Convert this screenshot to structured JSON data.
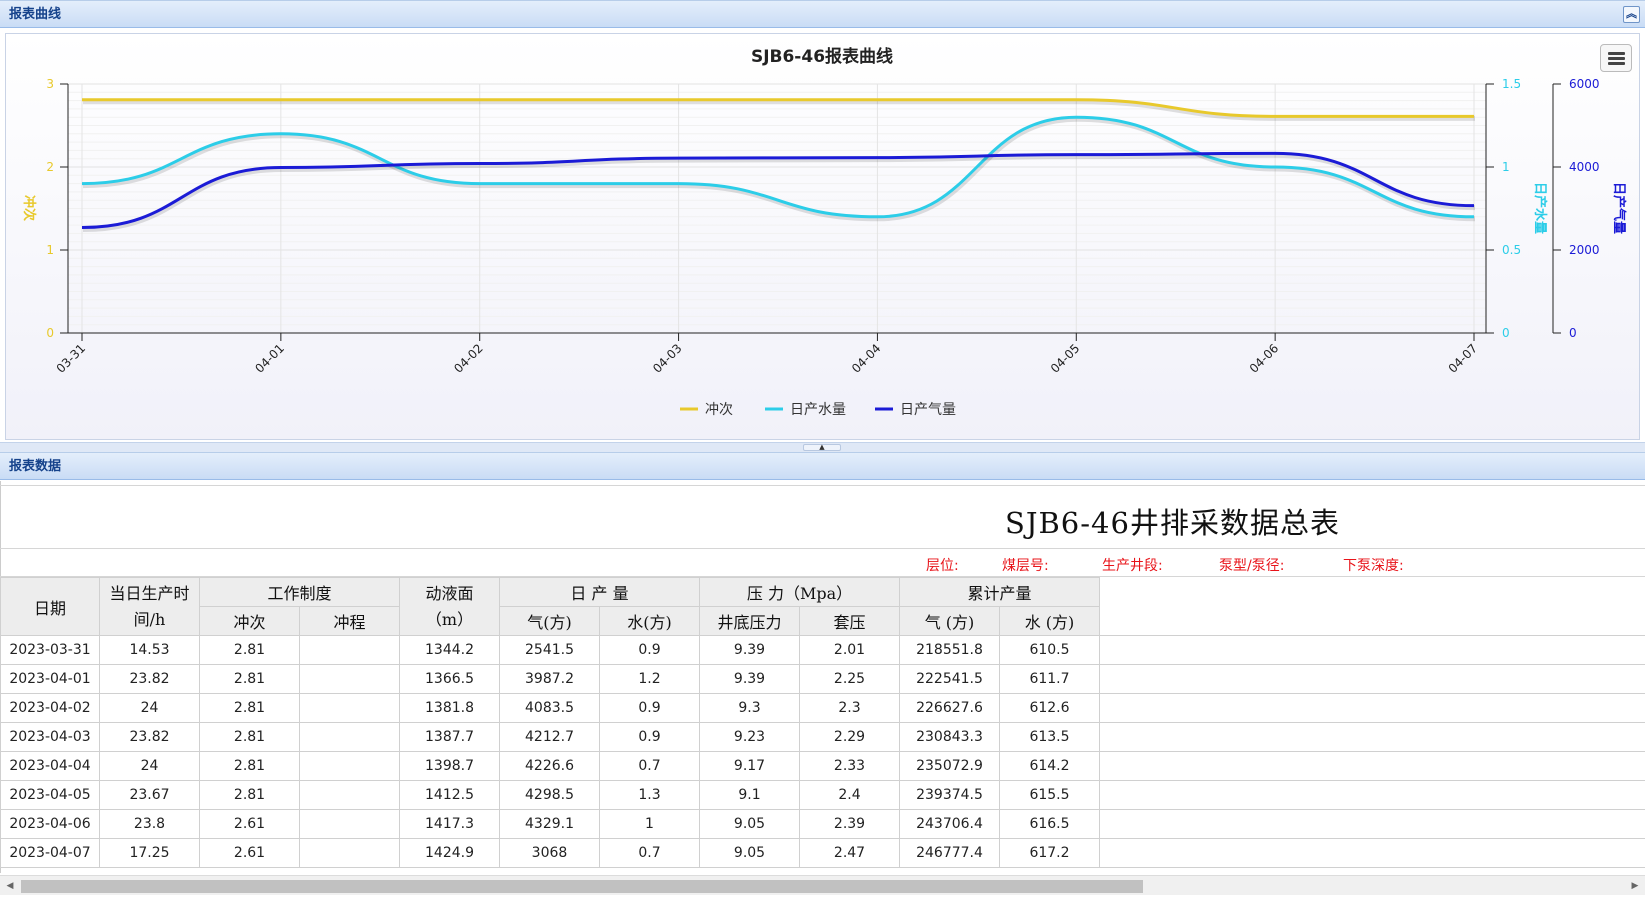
{
  "panels": {
    "chart_panel_title": "报表曲线",
    "data_panel_title": "报表数据"
  },
  "icons": {
    "collapse": "double-chevron-up-icon",
    "menu": "hamburger-menu-icon"
  },
  "colors": {
    "stroke": "#e8c92c",
    "water": "#2ccde8",
    "gas": "#1b1bd6",
    "meta_text": "#e8141a"
  },
  "chart_data": {
    "type": "line",
    "title": "SJB6-46报表曲线",
    "categories": [
      "03-31",
      "04-01",
      "04-02",
      "04-03",
      "04-04",
      "04-05",
      "04-06",
      "04-07"
    ],
    "series": [
      {
        "name": "冲次",
        "axis": "left",
        "values": [
          2.81,
          2.81,
          2.81,
          2.81,
          2.81,
          2.81,
          2.61,
          2.61
        ]
      },
      {
        "name": "日产水量",
        "axis": "right1",
        "values": [
          0.9,
          1.2,
          0.9,
          0.9,
          0.7,
          1.3,
          1.0,
          0.7
        ]
      },
      {
        "name": "日产气量",
        "axis": "right2",
        "values": [
          2541.5,
          3987.2,
          4083.5,
          4212.7,
          4226.6,
          4298.5,
          4329.1,
          3068
        ]
      }
    ],
    "axes": {
      "left": {
        "label": "冲次",
        "min": 0,
        "max": 3,
        "ticks": [
          "0",
          "1",
          "2",
          "3"
        ]
      },
      "right1": {
        "label": "日产水量",
        "min": 0,
        "max": 1.5,
        "ticks": [
          "0",
          "0.5",
          "1",
          "1.5"
        ]
      },
      "right2": {
        "label": "日产气量",
        "min": 0,
        "max": 6000,
        "ticks": [
          "0",
          "2000",
          "4000",
          "6000"
        ]
      }
    },
    "grid": true,
    "legend": "bottom-center"
  },
  "report": {
    "title": "SJB6-46井排采数据总表",
    "meta": [
      "层位:",
      "煤层号:",
      "生产井段:",
      "泵型/泵径:",
      "下泵深度:"
    ],
    "headers": {
      "date": "日期",
      "hours": "当日生产时间/h",
      "work": "工作制度",
      "stroke_count": "冲次",
      "stroke_len": "冲程",
      "fluid": "动液面（m）",
      "daily": "日 产 量",
      "gas": "气(方)",
      "water": "水(方)",
      "pressure": "压 力（Mpa）",
      "bottom": "井底压力",
      "casing": "套压",
      "cum": "累计产量",
      "cum_gas": "气 (方)",
      "cum_water": "水 (方)"
    },
    "rows": [
      [
        "2023-03-31",
        "14.53",
        "2.81",
        "",
        "1344.2",
        "2541.5",
        "0.9",
        "9.39",
        "2.01",
        "218551.8",
        "610.5"
      ],
      [
        "2023-04-01",
        "23.82",
        "2.81",
        "",
        "1366.5",
        "3987.2",
        "1.2",
        "9.39",
        "2.25",
        "222541.5",
        "611.7"
      ],
      [
        "2023-04-02",
        "24",
        "2.81",
        "",
        "1381.8",
        "4083.5",
        "0.9",
        "9.3",
        "2.3",
        "226627.6",
        "612.6"
      ],
      [
        "2023-04-03",
        "23.82",
        "2.81",
        "",
        "1387.7",
        "4212.7",
        "0.9",
        "9.23",
        "2.29",
        "230843.3",
        "613.5"
      ],
      [
        "2023-04-04",
        "24",
        "2.81",
        "",
        "1398.7",
        "4226.6",
        "0.7",
        "9.17",
        "2.33",
        "235072.9",
        "614.2"
      ],
      [
        "2023-04-05",
        "23.67",
        "2.81",
        "",
        "1412.5",
        "4298.5",
        "1.3",
        "9.1",
        "2.4",
        "239374.5",
        "615.5"
      ],
      [
        "2023-04-06",
        "23.8",
        "2.61",
        "",
        "1417.3",
        "4329.1",
        "1",
        "9.05",
        "2.39",
        "243706.4",
        "616.5"
      ],
      [
        "2023-04-07",
        "17.25",
        "2.61",
        "",
        "1424.9",
        "3068",
        "0.7",
        "9.05",
        "2.47",
        "246777.4",
        "617.2"
      ]
    ]
  }
}
